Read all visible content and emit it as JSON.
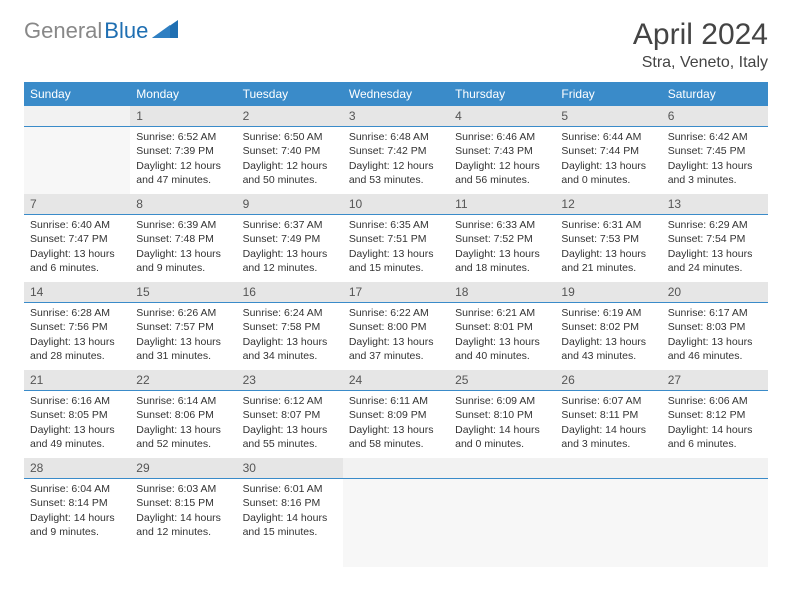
{
  "brand": {
    "part1": "General",
    "part2": "Blue"
  },
  "title": "April 2024",
  "location": "Stra, Veneto, Italy",
  "colors": {
    "header_bg": "#3a8bc9",
    "header_text": "#ffffff",
    "daynum_bg": "#e6e6e6",
    "border": "#3a8bc9",
    "logo_gray": "#888888",
    "logo_blue": "#1f6fb2"
  },
  "weekdays": [
    "Sunday",
    "Monday",
    "Tuesday",
    "Wednesday",
    "Thursday",
    "Friday",
    "Saturday"
  ],
  "weeks": [
    [
      null,
      {
        "n": "1",
        "sr": "6:52 AM",
        "ss": "7:39 PM",
        "dl": "12 hours and 47 minutes."
      },
      {
        "n": "2",
        "sr": "6:50 AM",
        "ss": "7:40 PM",
        "dl": "12 hours and 50 minutes."
      },
      {
        "n": "3",
        "sr": "6:48 AM",
        "ss": "7:42 PM",
        "dl": "12 hours and 53 minutes."
      },
      {
        "n": "4",
        "sr": "6:46 AM",
        "ss": "7:43 PM",
        "dl": "12 hours and 56 minutes."
      },
      {
        "n": "5",
        "sr": "6:44 AM",
        "ss": "7:44 PM",
        "dl": "13 hours and 0 minutes."
      },
      {
        "n": "6",
        "sr": "6:42 AM",
        "ss": "7:45 PM",
        "dl": "13 hours and 3 minutes."
      }
    ],
    [
      {
        "n": "7",
        "sr": "6:40 AM",
        "ss": "7:47 PM",
        "dl": "13 hours and 6 minutes."
      },
      {
        "n": "8",
        "sr": "6:39 AM",
        "ss": "7:48 PM",
        "dl": "13 hours and 9 minutes."
      },
      {
        "n": "9",
        "sr": "6:37 AM",
        "ss": "7:49 PM",
        "dl": "13 hours and 12 minutes."
      },
      {
        "n": "10",
        "sr": "6:35 AM",
        "ss": "7:51 PM",
        "dl": "13 hours and 15 minutes."
      },
      {
        "n": "11",
        "sr": "6:33 AM",
        "ss": "7:52 PM",
        "dl": "13 hours and 18 minutes."
      },
      {
        "n": "12",
        "sr": "6:31 AM",
        "ss": "7:53 PM",
        "dl": "13 hours and 21 minutes."
      },
      {
        "n": "13",
        "sr": "6:29 AM",
        "ss": "7:54 PM",
        "dl": "13 hours and 24 minutes."
      }
    ],
    [
      {
        "n": "14",
        "sr": "6:28 AM",
        "ss": "7:56 PM",
        "dl": "13 hours and 28 minutes."
      },
      {
        "n": "15",
        "sr": "6:26 AM",
        "ss": "7:57 PM",
        "dl": "13 hours and 31 minutes."
      },
      {
        "n": "16",
        "sr": "6:24 AM",
        "ss": "7:58 PM",
        "dl": "13 hours and 34 minutes."
      },
      {
        "n": "17",
        "sr": "6:22 AM",
        "ss": "8:00 PM",
        "dl": "13 hours and 37 minutes."
      },
      {
        "n": "18",
        "sr": "6:21 AM",
        "ss": "8:01 PM",
        "dl": "13 hours and 40 minutes."
      },
      {
        "n": "19",
        "sr": "6:19 AM",
        "ss": "8:02 PM",
        "dl": "13 hours and 43 minutes."
      },
      {
        "n": "20",
        "sr": "6:17 AM",
        "ss": "8:03 PM",
        "dl": "13 hours and 46 minutes."
      }
    ],
    [
      {
        "n": "21",
        "sr": "6:16 AM",
        "ss": "8:05 PM",
        "dl": "13 hours and 49 minutes."
      },
      {
        "n": "22",
        "sr": "6:14 AM",
        "ss": "8:06 PM",
        "dl": "13 hours and 52 minutes."
      },
      {
        "n": "23",
        "sr": "6:12 AM",
        "ss": "8:07 PM",
        "dl": "13 hours and 55 minutes."
      },
      {
        "n": "24",
        "sr": "6:11 AM",
        "ss": "8:09 PM",
        "dl": "13 hours and 58 minutes."
      },
      {
        "n": "25",
        "sr": "6:09 AM",
        "ss": "8:10 PM",
        "dl": "14 hours and 0 minutes."
      },
      {
        "n": "26",
        "sr": "6:07 AM",
        "ss": "8:11 PM",
        "dl": "14 hours and 3 minutes."
      },
      {
        "n": "27",
        "sr": "6:06 AM",
        "ss": "8:12 PM",
        "dl": "14 hours and 6 minutes."
      }
    ],
    [
      {
        "n": "28",
        "sr": "6:04 AM",
        "ss": "8:14 PM",
        "dl": "14 hours and 9 minutes."
      },
      {
        "n": "29",
        "sr": "6:03 AM",
        "ss": "8:15 PM",
        "dl": "14 hours and 12 minutes."
      },
      {
        "n": "30",
        "sr": "6:01 AM",
        "ss": "8:16 PM",
        "dl": "14 hours and 15 minutes."
      },
      null,
      null,
      null,
      null
    ]
  ],
  "labels": {
    "sunrise": "Sunrise:",
    "sunset": "Sunset:",
    "daylight": "Daylight:"
  }
}
